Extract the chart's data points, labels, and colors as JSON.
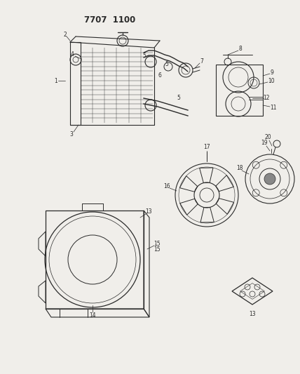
{
  "title": "7707  1100",
  "bg_color": "#f0eeea",
  "line_color": "#2a2a2a",
  "fig_width": 4.28,
  "fig_height": 5.33,
  "dpi": 100
}
